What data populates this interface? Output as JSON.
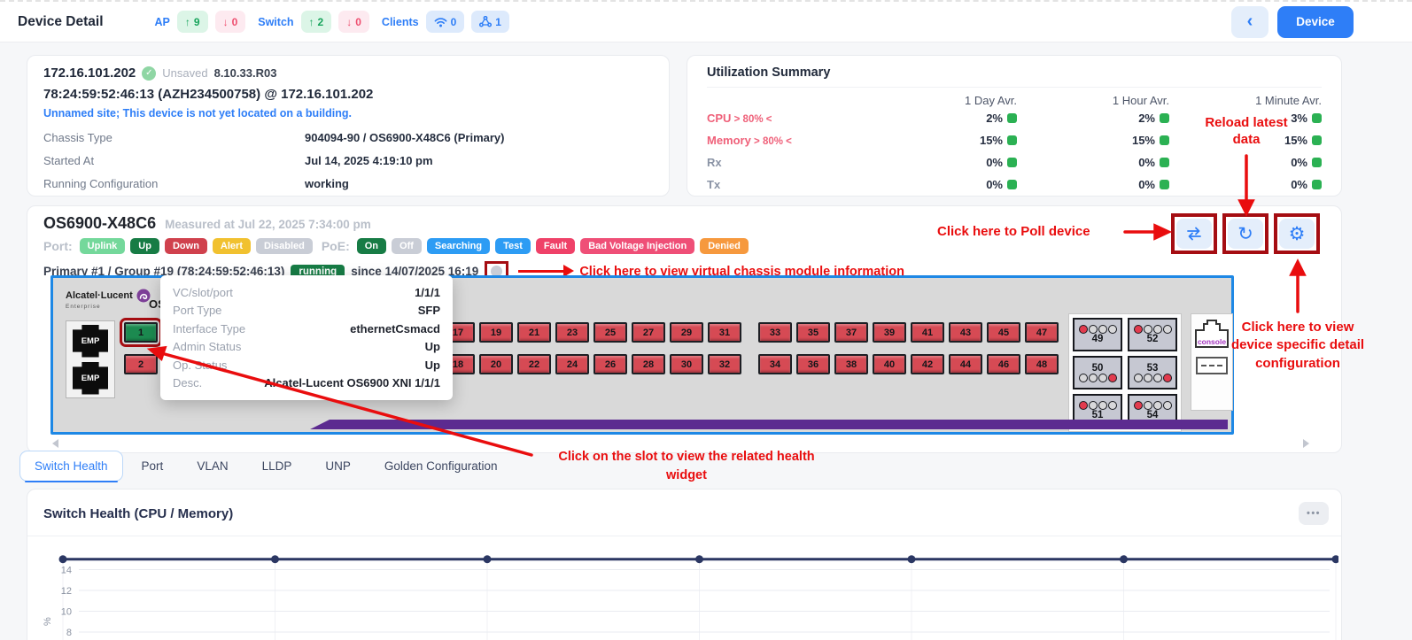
{
  "header": {
    "title": "Device Detail",
    "ap_label": "AP",
    "ap_up": "9",
    "ap_down": "0",
    "switch_label": "Switch",
    "switch_up": "2",
    "switch_down": "0",
    "clients_label": "Clients",
    "clients_wifi": "0",
    "clients_wired": "1",
    "device_button": "Device"
  },
  "icons": {
    "up_arrow": "↑",
    "down_arrow": "↓",
    "back": "‹",
    "reload": "↻",
    "gear": "⚙",
    "dots_menu": "•••"
  },
  "device_info": {
    "ip": "172.16.101.202",
    "save_status": "Unsaved",
    "version": "8.10.33.R03",
    "name": "78:24:59:52:46:13 (AZH234500758) @ 172.16.101.202",
    "location_note": "Unnamed site; This device is not yet located on a building.",
    "rows": [
      {
        "label": "Chassis Type",
        "value": "904094-90 / OS6900-X48C6 (Primary)"
      },
      {
        "label": "Started At",
        "value": "Jul 14, 2025 4:19:10 pm"
      },
      {
        "label": "Running Configuration",
        "value": "working"
      }
    ]
  },
  "utilization": {
    "title": "Utilization Summary",
    "columns": [
      "1 Day Avr.",
      "1 Hour Avr.",
      "1 Minute Avr."
    ],
    "rows": [
      {
        "label": "CPU",
        "threshold": "> 80% <",
        "alert": true,
        "values": [
          "2%",
          "2%",
          "3%"
        ]
      },
      {
        "label": "Memory",
        "threshold": "> 80% <",
        "alert": true,
        "values": [
          "15%",
          "15%",
          "15%"
        ]
      },
      {
        "label": "Rx",
        "threshold": "",
        "alert": false,
        "values": [
          "0%",
          "0%",
          "0%"
        ]
      },
      {
        "label": "Tx",
        "threshold": "",
        "alert": false,
        "values": [
          "0%",
          "0%",
          "0%"
        ]
      }
    ],
    "status_color": "#2bb153"
  },
  "switch_panel": {
    "model": "OS6900-X48C6",
    "measured": "Measured at Jul 22, 2025 7:34:00 pm",
    "port_label": "Port:",
    "poe_label": "PoE:",
    "port_legend": [
      {
        "label": "Uplink",
        "color": "#74d89b"
      },
      {
        "label": "Up",
        "color": "#177c45"
      },
      {
        "label": "Down",
        "color": "#d0414d"
      },
      {
        "label": "Alert",
        "color": "#f1c12f"
      },
      {
        "label": "Disabled",
        "color": "#c9cdd6"
      }
    ],
    "poe_legend": [
      {
        "label": "On",
        "color": "#177c45"
      },
      {
        "label": "Off",
        "color": "#c9cdd6"
      },
      {
        "label": "Searching",
        "color": "#2d9cf4"
      },
      {
        "label": "Test",
        "color": "#2d9cf4"
      },
      {
        "label": "Fault",
        "color": "#ef4168"
      },
      {
        "label": "Bad Voltage Injection",
        "color": "#ef4f77"
      },
      {
        "label": "Denied",
        "color": "#f6993e"
      }
    ],
    "primary": "Primary #1 / Group #19 (78:24:59:52:46:13)",
    "status": "running",
    "since": "since 14/07/2025 16:19",
    "brand": "Alcatel·Lucent",
    "brand_sub": "Enterprise",
    "chassis_model": "OS6900-X48C6",
    "emp": "EMP",
    "console": "console"
  },
  "ports": {
    "columns": 24,
    "group_gap_after": [
      8,
      16
    ],
    "up_ports": [
      1
    ],
    "up_color": "#1c8a50",
    "down_color": "#d64a54"
  },
  "modules": [
    {
      "num": "49",
      "dots": "top",
      "red": "first"
    },
    {
      "num": "52",
      "dots": "top",
      "red": "first"
    },
    {
      "num": "50",
      "dots": "bottom",
      "red": "last"
    },
    {
      "num": "53",
      "dots": "bottom",
      "red": "last"
    },
    {
      "num": "51",
      "dots": "top",
      "red": "first"
    },
    {
      "num": "54",
      "dots": "top",
      "red": "first"
    }
  ],
  "tooltip": {
    "rows": [
      {
        "label": "VC/slot/port",
        "value": "1/1/1"
      },
      {
        "label": "Port Type",
        "value": "SFP"
      },
      {
        "label": "Interface Type",
        "value": "ethernetCsmacd"
      },
      {
        "label": "Admin Status",
        "value": "Up"
      },
      {
        "label": "Op. Status",
        "value": "Up"
      },
      {
        "label": "Desc.",
        "value": "Alcatel-Lucent OS6900 XNI 1/1/1"
      }
    ]
  },
  "annotations": {
    "reload": "Reload latest data",
    "poll": "Click here to Poll device",
    "vc_info": "Click here to view virtual chassis module information",
    "gear": "Click here to view device specific detail configuration",
    "slot": "Click on the slot to view the related health widget",
    "arrow_color": "#e90d0e",
    "box_color": "#a50d12"
  },
  "tabs": [
    {
      "label": "Switch Health",
      "active": true
    },
    {
      "label": "Port",
      "active": false
    },
    {
      "label": "VLAN",
      "active": false
    },
    {
      "label": "LLDP",
      "active": false
    },
    {
      "label": "UNP",
      "active": false
    },
    {
      "label": "Golden Configuration",
      "active": false
    }
  ],
  "chart": {
    "title": "Switch Health (CPU / Memory)"
  },
  "chart_data": {
    "type": "line",
    "title": "Switch Health (CPU / Memory)",
    "ylabel": "%",
    "yticks": [
      8,
      10,
      12,
      14
    ],
    "grid": true,
    "series": [
      {
        "color": "#2b3763",
        "values": [
          15,
          15,
          15,
          15,
          15,
          15,
          15
        ]
      }
    ]
  }
}
